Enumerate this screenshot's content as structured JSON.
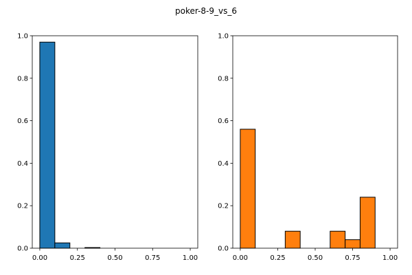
{
  "figure": {
    "title": "poker-8-9_vs_6"
  },
  "chart_data": [
    {
      "type": "bar",
      "name": "",
      "color": "#1f77b4",
      "edgecolor": "#000000",
      "xlim": [
        -0.05,
        1.05
      ],
      "ylim": [
        0,
        1.0
      ],
      "xticks": [
        0.0,
        0.25,
        0.5,
        0.75,
        1.0
      ],
      "xtick_labels": [
        "0.00",
        "0.25",
        "0.50",
        "0.75",
        "1.00"
      ],
      "yticks": [
        0.0,
        0.2,
        0.4,
        0.6,
        0.8,
        1.0
      ],
      "ytick_labels": [
        "0.0",
        "0.2",
        "0.4",
        "0.6",
        "0.8",
        "1.0"
      ],
      "bin_edges": [
        0.0,
        0.1,
        0.2,
        0.3,
        0.4,
        0.5,
        0.6,
        0.7,
        0.8,
        0.9,
        1.0
      ],
      "values": [
        0.97,
        0.025,
        0.0,
        0.003,
        0.0,
        0.0,
        0.0,
        0.0,
        0.0,
        0.0
      ]
    },
    {
      "type": "bar",
      "name": "",
      "color": "#ff7f0e",
      "edgecolor": "#000000",
      "xlim": [
        -0.05,
        1.05
      ],
      "ylim": [
        0,
        1.0
      ],
      "xticks": [
        0.0,
        0.25,
        0.5,
        0.75,
        1.0
      ],
      "xtick_labels": [
        "0.00",
        "0.25",
        "0.50",
        "0.75",
        "1.00"
      ],
      "yticks": [
        0.0,
        0.2,
        0.4,
        0.6,
        0.8,
        1.0
      ],
      "ytick_labels": [
        "0.0",
        "0.2",
        "0.4",
        "0.6",
        "0.8",
        "1.0"
      ],
      "bin_edges": [
        0.0,
        0.1,
        0.2,
        0.3,
        0.4,
        0.5,
        0.6,
        0.7,
        0.8,
        0.9,
        1.0
      ],
      "values": [
        0.56,
        0.0,
        0.0,
        0.08,
        0.0,
        0.0,
        0.08,
        0.04,
        0.24,
        0.0
      ]
    }
  ]
}
